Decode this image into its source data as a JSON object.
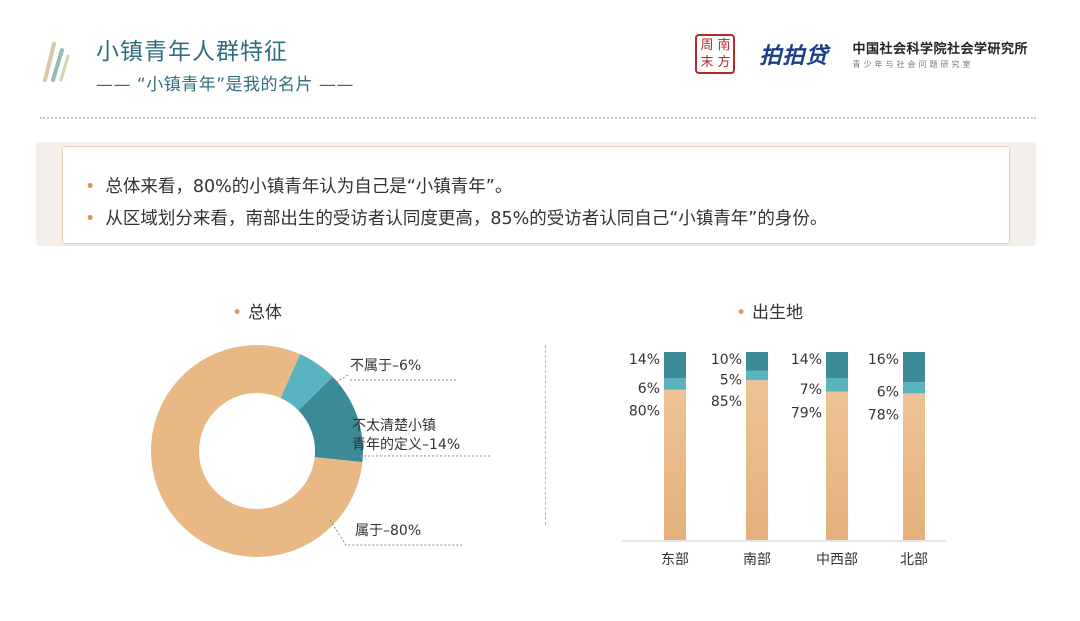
{
  "header": {
    "title": "小镇青年人群特征",
    "subtitle": "—— “小镇青年”是我的名片 ——"
  },
  "logos": {
    "seal": [
      "周",
      "南",
      "末",
      "方"
    ],
    "ppd": "拍拍贷",
    "cass_name": "中国社会科学院社会学研究所",
    "cass_sub": "青少年与社会问题研究室"
  },
  "summary": {
    "bullets": [
      "总体来看，80%的小镇青年认为自己是“小镇青年”。",
      "从区域划分来看，南部出生的受访者认同度更高，85%的受访者认同自己“小镇青年”的身份。"
    ]
  },
  "colors": {
    "belong": "#e8b885",
    "unsure": "#3a8a98",
    "not": "#5ab3c1",
    "accent": "#d89a59",
    "title": "#2d6f7f"
  },
  "chart_data": [
    {
      "type": "pie",
      "title": "总体",
      "slices": [
        {
          "label": "属于",
          "value": 80,
          "display": "属于–80%"
        },
        {
          "label": "不属于",
          "value": 6,
          "display": "不属于–6%"
        },
        {
          "label": "不太清楚小镇青年的定义",
          "value": 14,
          "display_lines": [
            "不太清楚小镇",
            "青年的定义–14%"
          ]
        }
      ]
    },
    {
      "type": "bar",
      "stacked": true,
      "title": "出生地",
      "categories": [
        "东部",
        "南部",
        "中西部",
        "北部"
      ],
      "series": [
        {
          "key": "belong",
          "values": [
            80,
            85,
            79,
            78
          ],
          "labels": [
            "80%",
            "85%",
            "79%",
            "78%"
          ]
        },
        {
          "key": "not",
          "values": [
            6,
            5,
            7,
            6
          ],
          "labels": [
            "6%",
            "5%",
            "7%",
            "6%"
          ]
        },
        {
          "key": "unsure",
          "values": [
            14,
            10,
            14,
            16
          ],
          "labels": [
            "14%",
            "10%",
            "14%",
            "16%"
          ]
        }
      ],
      "ylim": [
        0,
        100
      ]
    }
  ]
}
